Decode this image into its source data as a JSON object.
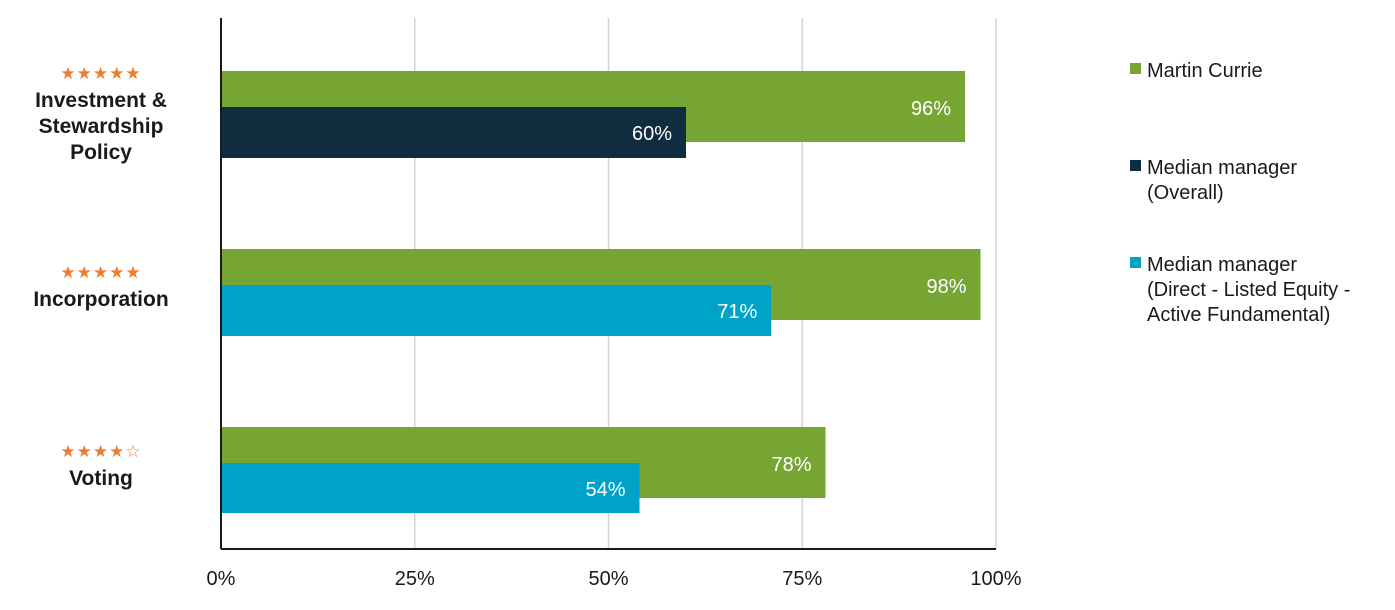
{
  "chart_data": {
    "type": "bar",
    "orientation": "horizontal",
    "categories": [
      {
        "label_lines": [
          "Investment &",
          "Stewardship",
          "Policy"
        ],
        "stars": "★★★★★"
      },
      {
        "label_lines": [
          "Incorporation"
        ],
        "stars": "★★★★★"
      },
      {
        "label_lines": [
          "Voting"
        ],
        "stars": "★★★★☆"
      }
    ],
    "bars": [
      [
        {
          "series": "Martin Currie",
          "value": 96,
          "label": "96%",
          "color": "#76a534"
        },
        {
          "series": "Median manager (Overall)",
          "value": 60,
          "label": "60%",
          "color": "#0f2d3f"
        }
      ],
      [
        {
          "series": "Martin Currie",
          "value": 98,
          "label": "98%",
          "color": "#76a534"
        },
        {
          "series": "Median manager (Direct - Listed Equity - Active Fundamental)",
          "value": 71,
          "label": "71%",
          "color": "#00a3c8"
        }
      ],
      [
        {
          "series": "Martin Currie",
          "value": 78,
          "label": "78%",
          "color": "#76a534"
        },
        {
          "series": "Median manager (Direct - Listed Equity - Active Fundamental)",
          "value": 54,
          "label": "54%",
          "color": "#00a3c8"
        }
      ]
    ],
    "x_ticks": [
      {
        "value": 0,
        "label": "0%"
      },
      {
        "value": 25,
        "label": "25%"
      },
      {
        "value": 50,
        "label": "50%"
      },
      {
        "value": 75,
        "label": "75%"
      },
      {
        "value": 100,
        "label": "100%"
      }
    ],
    "xlim": [
      0,
      100
    ],
    "grid": true,
    "legend_placement": "right",
    "legend": [
      {
        "lines": [
          "Martin Currie"
        ],
        "color": "#76a534"
      },
      {
        "lines": [
          "Median manager",
          "(Overall)"
        ],
        "color": "#0f2d3f"
      },
      {
        "lines": [
          "Median manager",
          "(Direct - Listed Equity -",
          "Active Fundamental)"
        ],
        "color": "#00a3c8"
      }
    ],
    "colors": {
      "star": "#ee7d2e",
      "grid": "#d4d4d4",
      "axis": "#1a1a1a"
    }
  }
}
